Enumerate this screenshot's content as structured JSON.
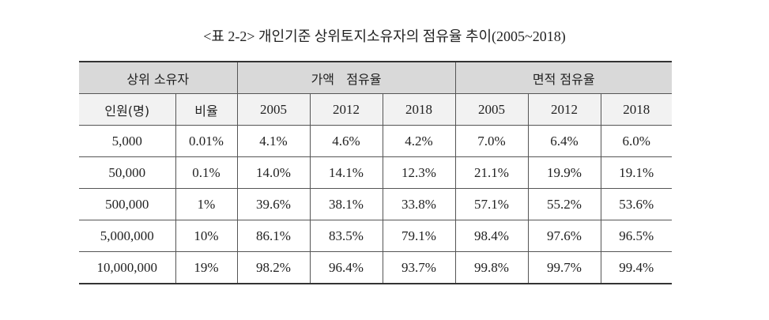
{
  "title": "<표 2-2> 개인기준 상위토지소유자의 점유율 추이(2005~2018)",
  "table": {
    "group_headers": [
      "상위 소유자",
      "가액   점유율",
      "면적 점유율"
    ],
    "sub_headers": [
      "인원(명)",
      "비율",
      "2005",
      "2012",
      "2018",
      "2005",
      "2012",
      "2018"
    ],
    "rows": [
      [
        "5,000",
        "0.01%",
        "4.1%",
        "4.6%",
        "4.2%",
        "7.0%",
        "6.4%",
        "6.0%"
      ],
      [
        "50,000",
        "0.1%",
        "14.0%",
        "14.1%",
        "12.3%",
        "21.1%",
        "19.9%",
        "19.1%"
      ],
      [
        "500,000",
        "1%",
        "39.6%",
        "38.1%",
        "33.8%",
        "57.1%",
        "55.2%",
        "53.6%"
      ],
      [
        "5,000,000",
        "10%",
        "86.1%",
        "83.5%",
        "79.1%",
        "98.4%",
        "97.6%",
        "96.5%"
      ],
      [
        "10,000,000",
        "19%",
        "98.2%",
        "96.4%",
        "93.7%",
        "99.8%",
        "99.7%",
        "99.4%"
      ]
    ]
  }
}
